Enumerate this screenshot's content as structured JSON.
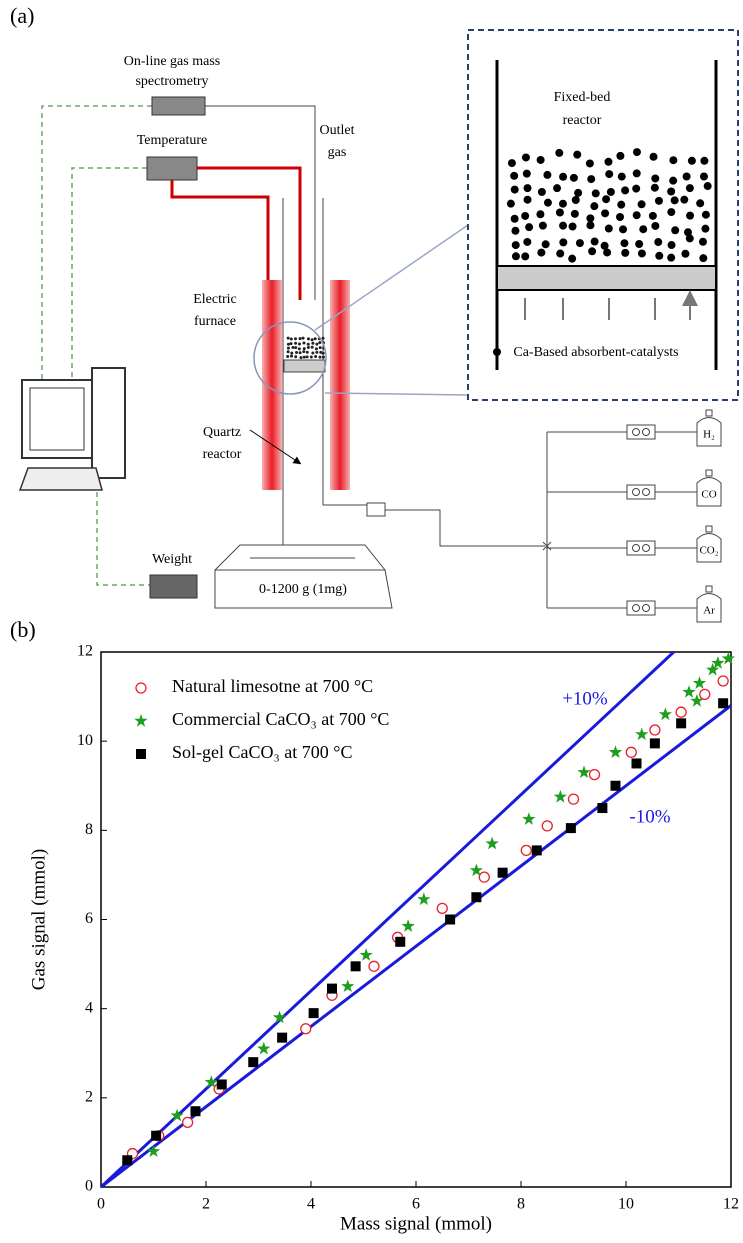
{
  "panel_a": {
    "label": "(a)",
    "mass_spec": [
      "On-line gas mass",
      "spectrometry"
    ],
    "temperature": "Temperature",
    "outlet": [
      "Outlet",
      "gas"
    ],
    "furnace": [
      "Electric",
      "furnace"
    ],
    "quartz": [
      "Quartz",
      "reactor"
    ],
    "fixed_bed": [
      "Fixed-bed",
      "reactor"
    ],
    "absorbent": "Ca-Based absorbent-catalysts",
    "weight": "Weight",
    "balance": "0-1200 g (1mg)",
    "gases": [
      "H₂",
      "CO",
      "CO₂",
      "Ar"
    ]
  },
  "chart_data": {
    "type": "scatter",
    "panel_label": "(b)",
    "x_label": "Mass signal (mmol)",
    "y_label": "Gas signal (mmol)",
    "xlim": [
      0,
      12
    ],
    "ylim": [
      0,
      12
    ],
    "xticks": [
      0,
      2,
      4,
      6,
      8,
      10,
      12
    ],
    "yticks": [
      0,
      2,
      4,
      6,
      8,
      10,
      12
    ],
    "reference_lines": [
      {
        "label": "+10%",
        "slope": 1.1,
        "color": "#1a1adb"
      },
      {
        "label": "-10%",
        "slope": 0.9,
        "color": "#1a1adb"
      }
    ],
    "series": [
      {
        "name": "Natural limesotne at 700 °C",
        "color": "#e8202a",
        "marker": "circle",
        "x": [
          0.6,
          1.1,
          1.65,
          2.25,
          3.9,
          4.4,
          5.2,
          5.65,
          6.5,
          7.3,
          8.1,
          8.5,
          9.0,
          9.4,
          10.1,
          10.55,
          11.05,
          11.5,
          11.85
        ],
        "values": [
          0.75,
          1.15,
          1.45,
          2.2,
          3.55,
          4.3,
          4.95,
          5.6,
          6.25,
          6.95,
          7.55,
          8.1,
          8.7,
          9.25,
          9.75,
          10.25,
          10.65,
          11.05,
          11.35
        ]
      },
      {
        "name": "Commercial CaCO₃ at 700 °C",
        "color": "#1e9e1e",
        "marker": "star",
        "x": [
          1.0,
          1.45,
          2.1,
          3.1,
          3.4,
          4.7,
          5.05,
          5.85,
          6.15,
          7.15,
          7.45,
          8.15,
          8.75,
          9.2,
          9.8,
          10.3,
          10.75,
          11.2,
          11.35,
          11.4,
          11.65,
          11.75,
          11.95
        ],
        "values": [
          0.8,
          1.6,
          2.35,
          3.1,
          3.8,
          4.5,
          5.2,
          5.85,
          6.45,
          7.1,
          7.7,
          8.25,
          8.75,
          9.3,
          9.75,
          10.15,
          10.6,
          11.1,
          10.9,
          11.3,
          11.6,
          11.75,
          11.85
        ]
      },
      {
        "name": "Sol-gel CaCO₃ at 700 °C",
        "color": "#000000",
        "marker": "square",
        "x": [
          0.5,
          1.05,
          1.8,
          2.3,
          2.9,
          3.45,
          4.05,
          4.4,
          4.85,
          5.7,
          6.65,
          7.15,
          7.65,
          8.3,
          8.95,
          9.55,
          9.8,
          10.2,
          10.55,
          11.05,
          11.85
        ],
        "values": [
          0.6,
          1.15,
          1.7,
          2.3,
          2.8,
          3.35,
          3.9,
          4.45,
          4.95,
          5.5,
          6.0,
          6.5,
          7.05,
          7.55,
          8.05,
          8.5,
          9.0,
          9.5,
          9.95,
          10.4,
          10.85
        ]
      }
    ]
  }
}
